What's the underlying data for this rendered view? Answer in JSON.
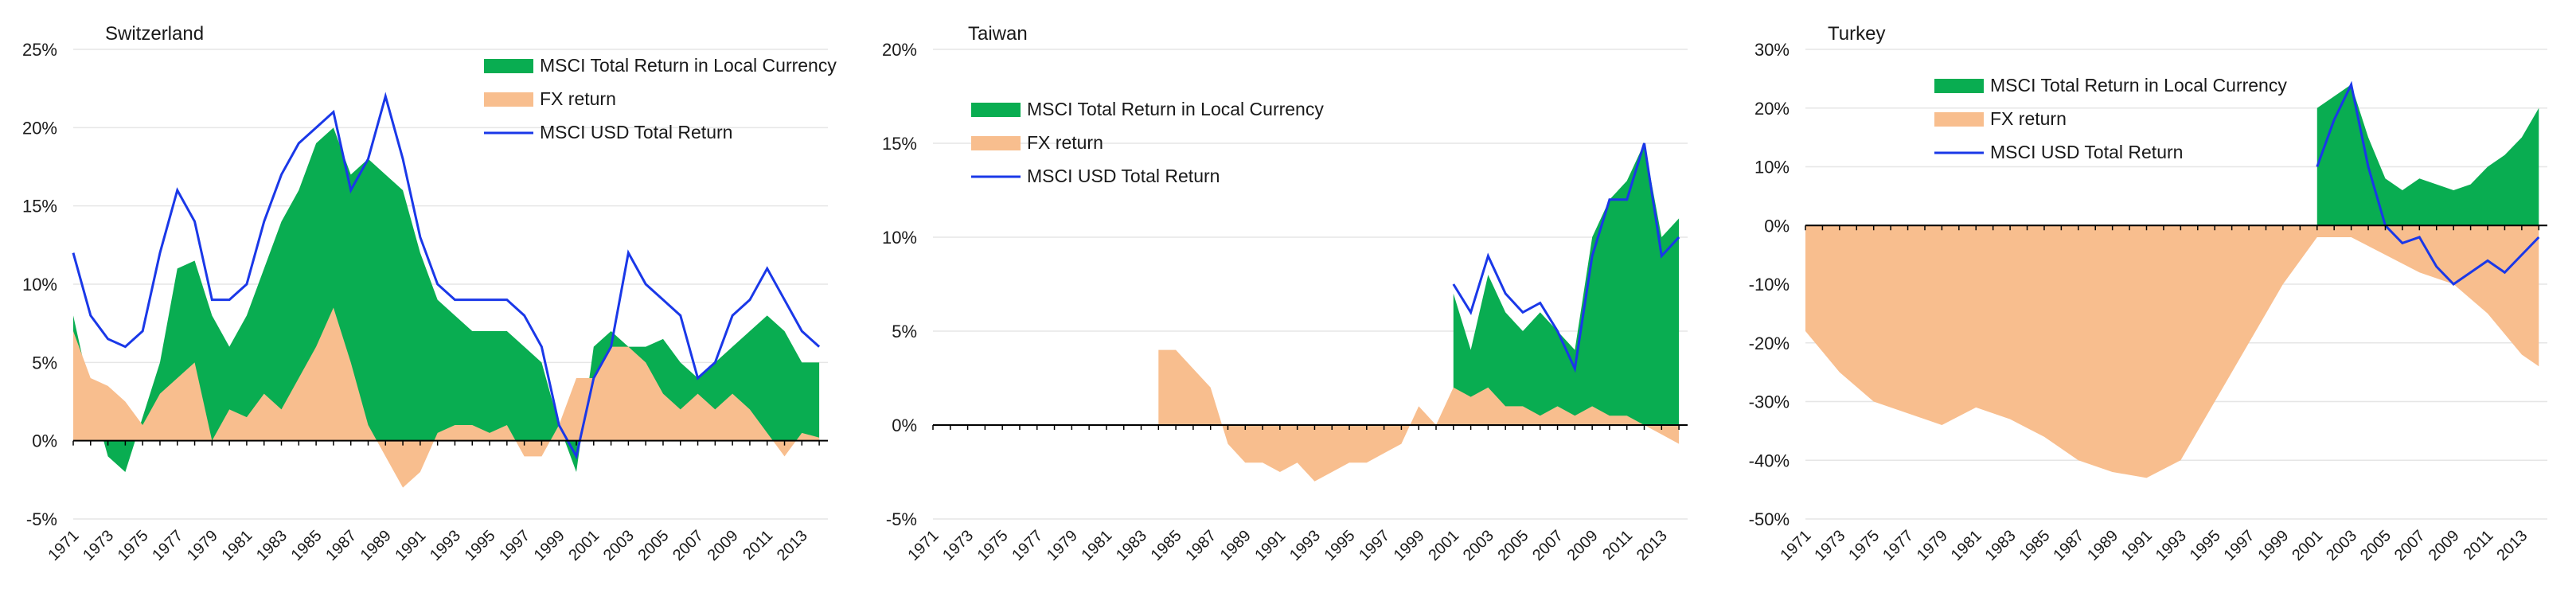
{
  "colors": {
    "local": "#09AD51",
    "fx": "#F8BE8E",
    "usd": "#1A38E8",
    "axis": "#000000",
    "grid": "#E6E6E6"
  },
  "x_ticks": [
    "1971",
    "1973",
    "1975",
    "1977",
    "1979",
    "1981",
    "1983",
    "1985",
    "1987",
    "1989",
    "1991",
    "1993",
    "1995",
    "1997",
    "1999",
    "2001",
    "2003",
    "2005",
    "2007",
    "2009",
    "2011",
    "2013"
  ],
  "chart_data": [
    {
      "type": "area",
      "title": "Switzerland",
      "xlim": [
        1971,
        2014.5
      ],
      "ylim": [
        -5,
        25
      ],
      "yticks": [
        -5,
        0,
        5,
        10,
        15,
        20,
        25
      ],
      "ytick_labels": [
        "-5%",
        "0%",
        "5%",
        "10%",
        "15%",
        "20%",
        "25%"
      ],
      "legend": [
        "MSCI Total Return in Local Currency",
        "FX return",
        "MSCI USD Total Return"
      ],
      "series": [
        {
          "name": "MSCI Total Return in Local Currency",
          "x": [
            1971,
            1972,
            1973,
            1974,
            1975,
            1976,
            1977,
            1978,
            1979,
            1980,
            1981,
            1982,
            1983,
            1984,
            1985,
            1986,
            1987,
            1988,
            1989,
            1990,
            1991,
            1992,
            1993,
            1994,
            1995,
            1996,
            1997,
            1998,
            1999,
            2000,
            2001,
            2002,
            2003,
            2004,
            2005,
            2006,
            2007,
            2008,
            2009,
            2010,
            2011,
            2012,
            2013,
            2014
          ],
          "values": [
            8,
            3,
            -1,
            -2,
            1.5,
            5,
            11,
            11.5,
            8,
            6,
            8,
            11,
            14,
            16,
            19,
            20,
            17,
            18,
            17,
            16,
            12,
            9,
            8,
            7,
            7,
            7,
            6,
            5,
            1,
            -2,
            6,
            7,
            6,
            6,
            6.5,
            5,
            4,
            5,
            6,
            7,
            8,
            7,
            5,
            5
          ]
        },
        {
          "name": "FX return",
          "x": [
            1971,
            1972,
            1973,
            1974,
            1975,
            1976,
            1977,
            1978,
            1979,
            1980,
            1981,
            1982,
            1983,
            1984,
            1985,
            1986,
            1987,
            1988,
            1989,
            1990,
            1991,
            1992,
            1993,
            1994,
            1995,
            1996,
            1997,
            1998,
            1999,
            2000,
            2001,
            2002,
            2003,
            2004,
            2005,
            2006,
            2007,
            2008,
            2009,
            2010,
            2011,
            2012,
            2013,
            2014
          ],
          "values": [
            7,
            4,
            3.5,
            2.5,
            1,
            3,
            4,
            5,
            0,
            2,
            1.5,
            3,
            2,
            4,
            6,
            8.5,
            5,
            1,
            -1,
            -3,
            -2,
            0.5,
            1,
            1,
            0.5,
            1,
            -1,
            -1,
            1,
            4,
            4,
            6,
            6,
            5,
            3,
            2,
            3,
            2,
            3,
            2,
            0.5,
            -1,
            0.5,
            0.2
          ]
        },
        {
          "name": "MSCI USD Total Return",
          "x": [
            1971,
            1972,
            1973,
            1974,
            1975,
            1976,
            1977,
            1978,
            1979,
            1980,
            1981,
            1982,
            1983,
            1984,
            1985,
            1986,
            1987,
            1988,
            1989,
            1990,
            1991,
            1992,
            1993,
            1994,
            1995,
            1996,
            1997,
            1998,
            1999,
            2000,
            2001,
            2002,
            2003,
            2004,
            2005,
            2006,
            2007,
            2008,
            2009,
            2010,
            2011,
            2012,
            2013,
            2014
          ],
          "values": [
            12,
            8,
            6.5,
            6,
            7,
            12,
            16,
            14,
            9,
            9,
            10,
            14,
            17,
            19,
            20,
            21,
            16,
            18,
            22,
            18,
            13,
            10,
            9,
            9,
            9,
            9,
            8,
            6,
            1,
            -1,
            4,
            6,
            12,
            10,
            9,
            8,
            4,
            5,
            8,
            9,
            11,
            9,
            7,
            6
          ]
        }
      ]
    },
    {
      "type": "area",
      "title": "Taiwan",
      "xlim": [
        1971,
        2014.5
      ],
      "ylim": [
        -5,
        20
      ],
      "yticks": [
        -5,
        0,
        5,
        10,
        15,
        20
      ],
      "ytick_labels": [
        "-5%",
        "0%",
        "5%",
        "10%",
        "15%",
        "20%"
      ],
      "legend": [
        "MSCI Total Return in Local Currency",
        "FX return",
        "MSCI USD Total Return"
      ],
      "series": [
        {
          "name": "MSCI Total Return in Local Currency",
          "x": [
            2001,
            2002,
            2003,
            2004,
            2005,
            2006,
            2007,
            2008,
            2009,
            2010,
            2011,
            2012,
            2013,
            2014
          ],
          "values": [
            7,
            4,
            8,
            6,
            5,
            6,
            5,
            4,
            10,
            12,
            13,
            15,
            10,
            11
          ]
        },
        {
          "name": "FX return",
          "x": [
            1984,
            1985,
            1986,
            1987,
            1988,
            1989,
            1990,
            1991,
            1992,
            1993,
            1994,
            1995,
            1996,
            1997,
            1998,
            1999,
            2000,
            2001,
            2002,
            2003,
            2004,
            2005,
            2006,
            2007,
            2008,
            2009,
            2010,
            2011,
            2012,
            2013,
            2014
          ],
          "values": [
            4,
            4,
            3,
            2,
            -1,
            -2,
            -2,
            -2.5,
            -2,
            -3,
            -2.5,
            -2,
            -2,
            -1.5,
            -1,
            1,
            0,
            2,
            1.5,
            2,
            1,
            1,
            0.5,
            1,
            0.5,
            1,
            0.5,
            0.5,
            0,
            -0.5,
            -1
          ]
        },
        {
          "name": "MSCI USD Total Return",
          "x": [
            2001,
            2002,
            2003,
            2004,
            2005,
            2006,
            2007,
            2008,
            2009,
            2010,
            2011,
            2012,
            2013,
            2014
          ],
          "values": [
            7.5,
            6,
            9,
            7,
            6,
            6.5,
            5,
            3,
            9,
            12,
            12,
            15,
            9,
            10
          ]
        }
      ]
    },
    {
      "type": "area",
      "title": "Turkey",
      "xlim": [
        1971,
        2014.5
      ],
      "ylim": [
        -50,
        30
      ],
      "yticks": [
        -50,
        -40,
        -30,
        -20,
        -10,
        0,
        10,
        20,
        30
      ],
      "ytick_labels": [
        "-50%",
        "-40%",
        "-30%",
        "-20%",
        "-10%",
        "0%",
        "10%",
        "20%",
        "30%"
      ],
      "legend": [
        "MSCI Total Return in Local Currency",
        "FX return",
        "MSCI USD Total Return"
      ],
      "series": [
        {
          "name": "MSCI Total Return in Local Currency",
          "x": [
            2001,
            2002,
            2003,
            2004,
            2005,
            2006,
            2007,
            2008,
            2009,
            2010,
            2011,
            2012,
            2013,
            2014
          ],
          "values": [
            20,
            22,
            24,
            15,
            8,
            6,
            8,
            7,
            6,
            7,
            10,
            12,
            15,
            20
          ]
        },
        {
          "name": "FX return",
          "x": [
            1971,
            1973,
            1975,
            1977,
            1979,
            1981,
            1983,
            1985,
            1987,
            1989,
            1991,
            1993,
            1995,
            1997,
            1999,
            2001,
            2003,
            2005,
            2007,
            2009,
            2011,
            2013,
            2014
          ],
          "values": [
            -18,
            -25,
            -30,
            -32,
            -34,
            -31,
            -33,
            -36,
            -40,
            -42,
            -43,
            -40,
            -30,
            -20,
            -10,
            -2,
            -2,
            -5,
            -8,
            -10,
            -15,
            -22,
            -24
          ]
        },
        {
          "name": "MSCI USD Total Return",
          "x": [
            2001,
            2002,
            2003,
            2004,
            2005,
            2006,
            2007,
            2008,
            2009,
            2010,
            2011,
            2012,
            2013,
            2014
          ],
          "values": [
            10,
            18,
            24,
            10,
            0,
            -3,
            -2,
            -7,
            -10,
            -8,
            -6,
            -8,
            -5,
            -2
          ]
        }
      ]
    }
  ]
}
